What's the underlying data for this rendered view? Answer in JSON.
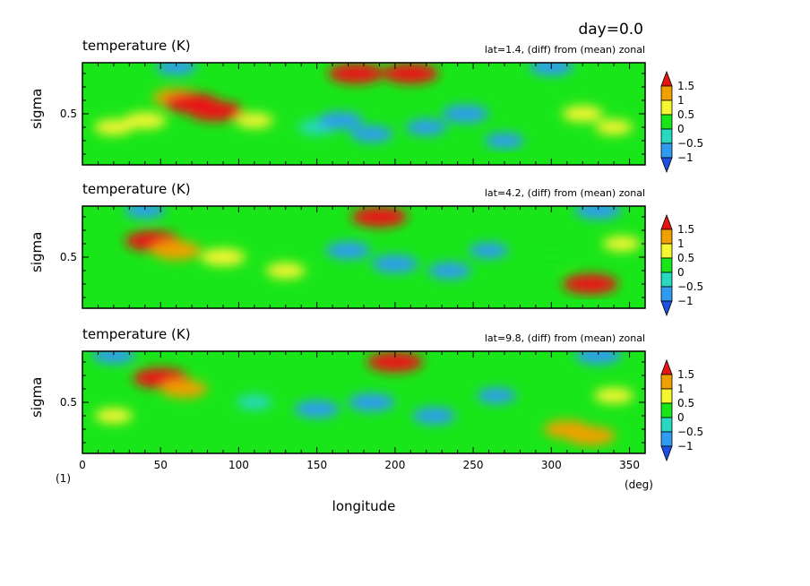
{
  "header": {
    "day_label": "day=0.0",
    "figure_number": "(1)"
  },
  "colors": {
    "levels": [
      "#1f4fe0",
      "#2f9cf2",
      "#28d8c0",
      "#19e619",
      "#f5f530",
      "#f0a000",
      "#e81414"
    ],
    "bounds": [
      -1,
      -0.5,
      0,
      0.5,
      1,
      1.5
    ]
  },
  "chart_data": [
    {
      "type": "heatmap",
      "title": "temperature (K)",
      "subtitle": "lat=1.4, (diff) from (mean) zonal",
      "xlabel": "",
      "ylabel": "sigma",
      "xlim": [
        0,
        360
      ],
      "ylim": [
        0.12,
        0.88
      ],
      "x_ticks": [
        "0",
        "50",
        "100",
        "150",
        "200",
        "250",
        "300",
        "350"
      ],
      "y_ticks": [
        "0.5"
      ],
      "colorbar_ticks": [
        "1.5",
        "1",
        "0.5",
        "0",
        "-0.5",
        "-1"
      ],
      "grid": false,
      "blobs": [
        {
          "lon": 60,
          "sigma": 0.62,
          "value": 1.0
        },
        {
          "lon": 70,
          "sigma": 0.58,
          "value": 1.5
        },
        {
          "lon": 85,
          "sigma": 0.52,
          "value": 1.5
        },
        {
          "lon": 40,
          "sigma": 0.45,
          "value": 0.8
        },
        {
          "lon": 20,
          "sigma": 0.4,
          "value": 0.6
        },
        {
          "lon": 110,
          "sigma": 0.45,
          "value": 0.5
        },
        {
          "lon": 150,
          "sigma": 0.4,
          "value": -0.5
        },
        {
          "lon": 165,
          "sigma": 0.45,
          "value": -0.9
        },
        {
          "lon": 185,
          "sigma": 0.35,
          "value": -0.8
        },
        {
          "lon": 220,
          "sigma": 0.4,
          "value": -0.7
        },
        {
          "lon": 245,
          "sigma": 0.5,
          "value": -1.0
        },
        {
          "lon": 270,
          "sigma": 0.3,
          "value": -0.6
        },
        {
          "lon": 320,
          "sigma": 0.5,
          "value": 0.7
        },
        {
          "lon": 340,
          "sigma": 0.4,
          "value": 0.5
        },
        {
          "lon": 175,
          "sigma": 0.8,
          "value": 1.5
        },
        {
          "lon": 210,
          "sigma": 0.8,
          "value": 1.5
        },
        {
          "lon": 60,
          "sigma": 0.85,
          "value": -0.7
        },
        {
          "lon": 300,
          "sigma": 0.85,
          "value": -0.9
        }
      ]
    },
    {
      "type": "heatmap",
      "title": "temperature (K)",
      "subtitle": "lat=4.2, (diff) from (mean) zonal",
      "xlabel": "",
      "ylabel": "sigma",
      "xlim": [
        0,
        360
      ],
      "ylim": [
        0.12,
        0.88
      ],
      "x_ticks": [
        "0",
        "50",
        "100",
        "150",
        "200",
        "250",
        "300",
        "350"
      ],
      "y_ticks": [
        "0.5"
      ],
      "colorbar_ticks": [
        "1.5",
        "1",
        "0.5",
        "0",
        "-0.5",
        "-1"
      ],
      "grid": false,
      "blobs": [
        {
          "lon": 45,
          "sigma": 0.62,
          "value": 1.5
        },
        {
          "lon": 60,
          "sigma": 0.55,
          "value": 1.2
        },
        {
          "lon": 90,
          "sigma": 0.5,
          "value": 0.9
        },
        {
          "lon": 130,
          "sigma": 0.4,
          "value": 0.6
        },
        {
          "lon": 170,
          "sigma": 0.55,
          "value": -0.9
        },
        {
          "lon": 200,
          "sigma": 0.45,
          "value": -1.0
        },
        {
          "lon": 235,
          "sigma": 0.4,
          "value": -0.8
        },
        {
          "lon": 260,
          "sigma": 0.55,
          "value": -0.6
        },
        {
          "lon": 300,
          "sigma": 0.5,
          "value": 0.4
        },
        {
          "lon": 325,
          "sigma": 0.3,
          "value": 1.5
        },
        {
          "lon": 345,
          "sigma": 0.6,
          "value": 0.5
        },
        {
          "lon": 190,
          "sigma": 0.8,
          "value": 1.5
        },
        {
          "lon": 40,
          "sigma": 0.85,
          "value": -0.7
        },
        {
          "lon": 330,
          "sigma": 0.85,
          "value": -1.0
        }
      ]
    },
    {
      "type": "heatmap",
      "title": "temperature (K)",
      "subtitle": "lat=9.8, (diff) from (mean) zonal",
      "xlabel": "longitude",
      "ylabel": "sigma",
      "x_unit": "(deg)",
      "xlim": [
        0,
        360
      ],
      "ylim": [
        0.12,
        0.88
      ],
      "x_ticks": [
        "0",
        "50",
        "100",
        "150",
        "200",
        "250",
        "300",
        "350"
      ],
      "y_ticks": [
        "0.5"
      ],
      "colorbar_ticks": [
        "1.5",
        "1",
        "0.5",
        "0",
        "-0.5",
        "-1"
      ],
      "grid": false,
      "blobs": [
        {
          "lon": 50,
          "sigma": 0.68,
          "value": 1.5
        },
        {
          "lon": 65,
          "sigma": 0.6,
          "value": 1.0
        },
        {
          "lon": 20,
          "sigma": 0.4,
          "value": 0.5
        },
        {
          "lon": 110,
          "sigma": 0.5,
          "value": -0.4
        },
        {
          "lon": 150,
          "sigma": 0.45,
          "value": -0.9
        },
        {
          "lon": 185,
          "sigma": 0.5,
          "value": -1.0
        },
        {
          "lon": 225,
          "sigma": 0.4,
          "value": -0.8
        },
        {
          "lon": 265,
          "sigma": 0.55,
          "value": -0.6
        },
        {
          "lon": 310,
          "sigma": 0.3,
          "value": 1.0
        },
        {
          "lon": 325,
          "sigma": 0.25,
          "value": 1.2
        },
        {
          "lon": 340,
          "sigma": 0.55,
          "value": 0.6
        },
        {
          "lon": 200,
          "sigma": 0.8,
          "value": 1.5
        },
        {
          "lon": 20,
          "sigma": 0.85,
          "value": -0.8
        },
        {
          "lon": 330,
          "sigma": 0.85,
          "value": -1.0
        }
      ]
    }
  ]
}
